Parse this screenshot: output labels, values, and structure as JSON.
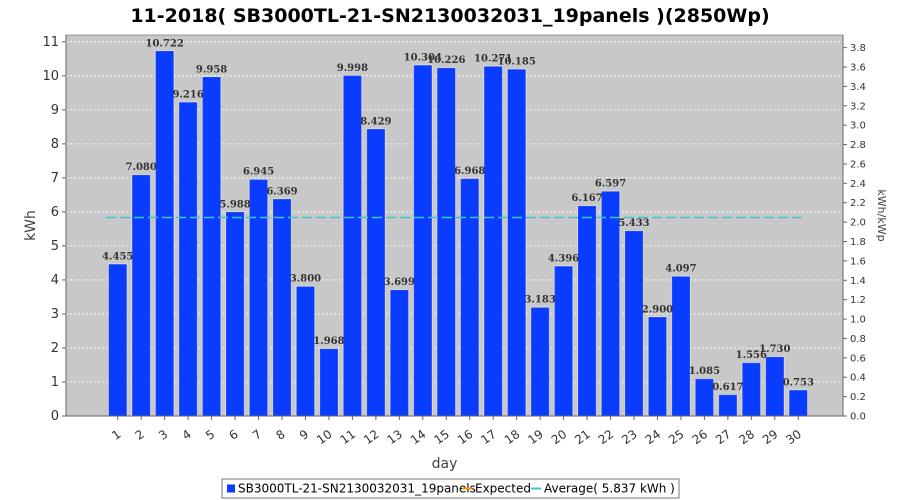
{
  "chart_data": {
    "type": "bar",
    "title": "11-2018( SB3000TL-21-SN2130032031_19panels )(2850Wp)",
    "xlabel": "day",
    "ylabel": "kWh",
    "y2label": "kWh/kWp",
    "ylim": [
      0,
      11.2
    ],
    "y2lim": [
      0,
      3.93
    ],
    "yticks": [
      0,
      1,
      2,
      3,
      4,
      5,
      6,
      7,
      8,
      9,
      10,
      11
    ],
    "y2ticks": [
      "0.0",
      "0.2",
      "0.4",
      "0.6",
      "0.8",
      "1.0",
      "1.2",
      "1.4",
      "1.6",
      "1.8",
      "2.0",
      "2.2",
      "2.4",
      "2.6",
      "2.8",
      "3.0",
      "3.2",
      "3.4",
      "3.6",
      "3.8"
    ],
    "categories": [
      "1",
      "2",
      "3",
      "4",
      "5",
      "6",
      "7",
      "8",
      "9",
      "10",
      "11",
      "12",
      "13",
      "14",
      "15",
      "16",
      "17",
      "18",
      "19",
      "20",
      "21",
      "22",
      "23",
      "24",
      "25",
      "26",
      "27",
      "28",
      "29",
      "30"
    ],
    "series": [
      {
        "name": "SB3000TL-21-SN2130032031_19panels",
        "color": "#0a3cff",
        "values": [
          4.455,
          7.08,
          10.722,
          9.216,
          9.958,
          5.988,
          6.945,
          6.369,
          3.8,
          1.968,
          9.998,
          8.429,
          3.699,
          10.304,
          10.226,
          6.968,
          10.271,
          10.185,
          3.183,
          4.396,
          6.167,
          6.597,
          5.433,
          2.9,
          4.097,
          1.085,
          0.617,
          1.556,
          1.73,
          0.753
        ],
        "labels": [
          "4.455",
          "7.080",
          "10.722",
          "9.216",
          "9.958",
          "5.988",
          "6.945",
          "6.369",
          "3.800",
          "1.968",
          "9.998",
          "8.429",
          "3.699",
          "10.304",
          "10.226",
          "6.968",
          "10.271",
          "10.185",
          "3.183",
          "4.396",
          "6.167",
          "6.597",
          "5.433",
          "2.900",
          "4.097",
          "1.085",
          "0.617",
          "1.556",
          "1.730",
          "0.753"
        ]
      }
    ],
    "average": {
      "value": 5.837,
      "color": "#3cc8c8"
    },
    "legend": {
      "placement": "bottom",
      "items": [
        {
          "label": "SB3000TL-21-SN2130032031_19panels",
          "kind": "box",
          "color": "#0a3cff"
        },
        {
          "label": "Expected",
          "kind": "line",
          "color": "#ff8c00"
        },
        {
          "label": "Average( 5.837 kWh )",
          "kind": "line",
          "color": "#3cc8c8"
        }
      ]
    },
    "grid": true
  }
}
